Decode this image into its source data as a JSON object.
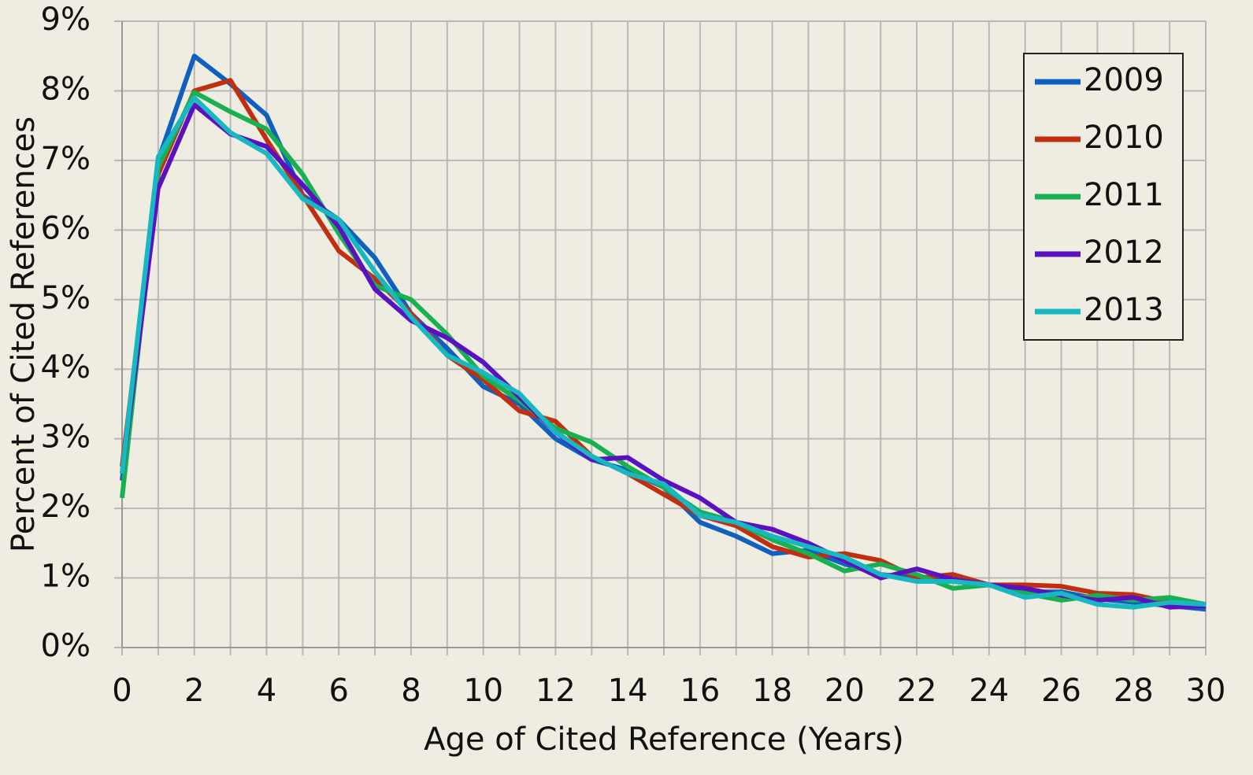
{
  "chart_data": {
    "type": "line",
    "xlabel": "Age of Cited Reference (Years)",
    "ylabel": "Percent of Cited References",
    "x": [
      0,
      1,
      2,
      3,
      4,
      5,
      6,
      7,
      8,
      9,
      10,
      11,
      12,
      13,
      14,
      15,
      16,
      17,
      18,
      19,
      20,
      21,
      22,
      23,
      24,
      25,
      26,
      27,
      28,
      29,
      30
    ],
    "series": [
      {
        "name": "2009",
        "color": "#1060c0",
        "values": [
          2.4,
          7.0,
          8.5,
          8.1,
          7.65,
          6.5,
          6.15,
          5.6,
          4.8,
          4.3,
          3.75,
          3.5,
          3.0,
          2.7,
          2.55,
          2.3,
          1.8,
          1.6,
          1.35,
          1.4,
          1.2,
          1.05,
          1.0,
          0.95,
          0.9,
          0.8,
          0.8,
          0.7,
          0.65,
          0.6,
          0.55
        ]
      },
      {
        "name": "2010",
        "color": "#c03010",
        "values": [
          2.6,
          6.8,
          8.0,
          8.15,
          7.3,
          6.5,
          5.7,
          5.3,
          4.8,
          4.2,
          3.85,
          3.4,
          3.25,
          2.75,
          2.5,
          2.2,
          1.9,
          1.75,
          1.45,
          1.3,
          1.35,
          1.25,
          1.0,
          1.05,
          0.9,
          0.9,
          0.88,
          0.78,
          0.76,
          0.65,
          0.6
        ]
      },
      {
        "name": "2011",
        "color": "#18b050",
        "values": [
          2.15,
          6.9,
          7.98,
          7.7,
          7.45,
          6.8,
          5.95,
          5.2,
          5.0,
          4.5,
          3.9,
          3.55,
          3.15,
          2.95,
          2.6,
          2.3,
          1.95,
          1.8,
          1.55,
          1.35,
          1.1,
          1.2,
          1.05,
          0.85,
          0.9,
          0.78,
          0.68,
          0.75,
          0.68,
          0.72,
          0.62
        ]
      },
      {
        "name": "2012",
        "color": "#5a12c0",
        "values": [
          2.5,
          6.6,
          7.8,
          7.38,
          7.2,
          6.65,
          6.05,
          5.15,
          4.7,
          4.45,
          4.1,
          3.6,
          3.1,
          2.7,
          2.73,
          2.4,
          2.15,
          1.8,
          1.7,
          1.5,
          1.25,
          1.0,
          1.13,
          0.98,
          0.9,
          0.85,
          0.75,
          0.68,
          0.72,
          0.58,
          0.6
        ]
      },
      {
        "name": "2013",
        "color": "#18b8c0",
        "values": [
          2.5,
          7.05,
          7.9,
          7.4,
          7.1,
          6.45,
          6.15,
          5.4,
          4.75,
          4.2,
          3.95,
          3.65,
          3.1,
          2.75,
          2.5,
          2.35,
          1.9,
          1.8,
          1.6,
          1.45,
          1.3,
          1.05,
          0.95,
          0.95,
          0.9,
          0.72,
          0.78,
          0.62,
          0.58,
          0.65,
          0.62
        ]
      }
    ],
    "xlim": [
      0,
      30
    ],
    "xticks": [
      0,
      2,
      4,
      6,
      8,
      10,
      12,
      14,
      16,
      18,
      20,
      22,
      24,
      26,
      28,
      30
    ],
    "ylim": [
      0,
      9
    ],
    "yticks": [
      {
        "value": 0,
        "label": "0%"
      },
      {
        "value": 1,
        "label": "1%"
      },
      {
        "value": 2,
        "label": "2%"
      },
      {
        "value": 3,
        "label": "3%"
      },
      {
        "value": 4,
        "label": "4%"
      },
      {
        "value": 5,
        "label": "5%"
      },
      {
        "value": 6,
        "label": "6%"
      },
      {
        "value": 7,
        "label": "7%"
      },
      {
        "value": 8,
        "label": "8%"
      },
      {
        "value": 9,
        "label": "9%"
      }
    ],
    "grid": true,
    "legend": "upper right"
  }
}
